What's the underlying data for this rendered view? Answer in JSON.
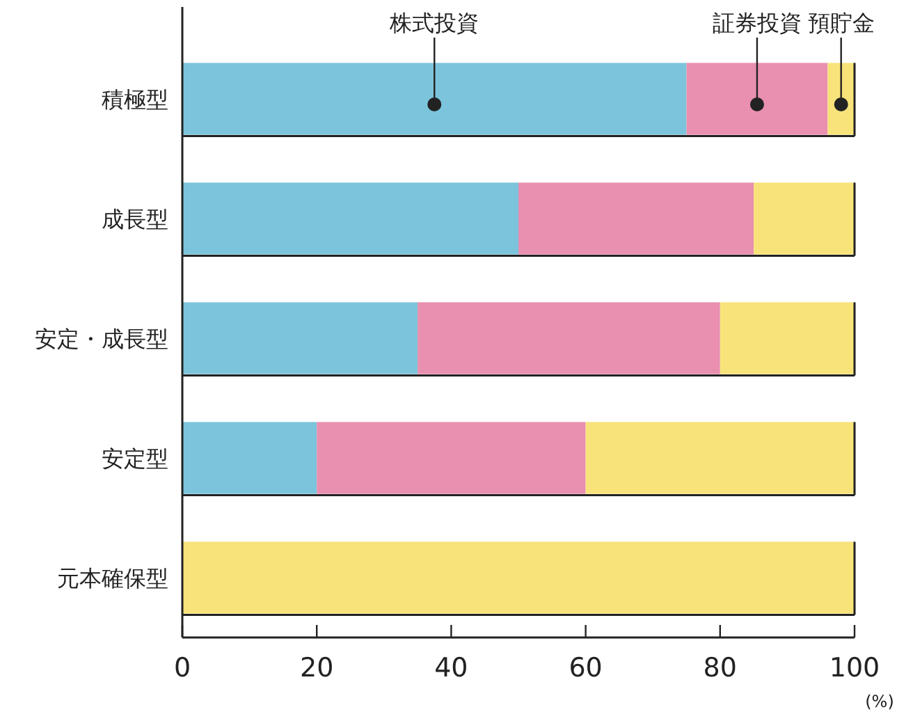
{
  "chart_data": {
    "type": "bar",
    "orientation": "horizontal",
    "stacked": true,
    "xlabel": "(%)",
    "categories": [
      "積極型",
      "成長型",
      "安定・成長型",
      "安定型",
      "元本確保型"
    ],
    "series": [
      {
        "name": "株式投資",
        "color": "#7cc4dc",
        "values": [
          75,
          50,
          35,
          20,
          0
        ]
      },
      {
        "name": "証券投資",
        "color": "#e98fb0",
        "values": [
          21,
          35,
          45,
          40,
          0
        ]
      },
      {
        "name": "預貯金",
        "color": "#f7e37a",
        "values": [
          4,
          15,
          20,
          40,
          100
        ]
      }
    ],
    "xlim": [
      0,
      100
    ],
    "xticks": [
      0,
      20,
      40,
      60,
      80,
      100
    ]
  }
}
